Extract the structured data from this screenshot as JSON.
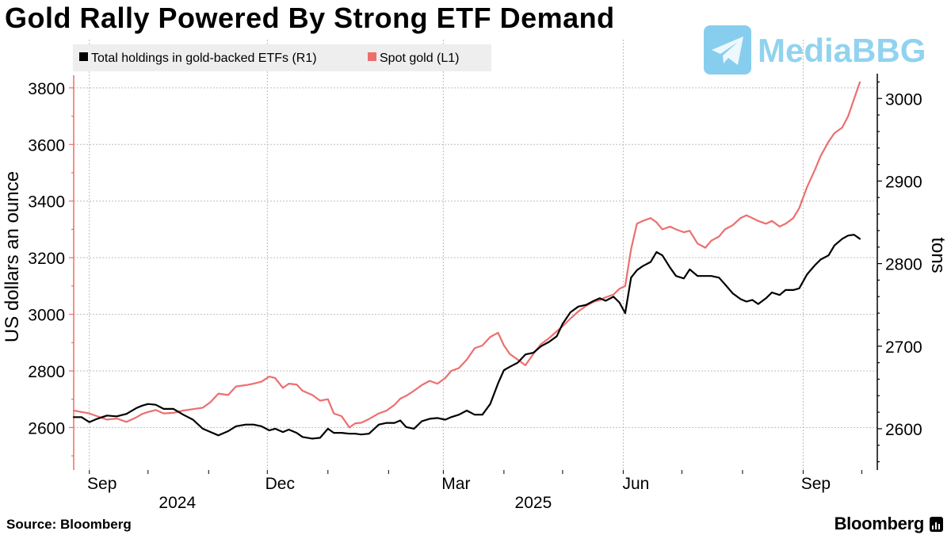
{
  "title": "Gold Rally Powered By Strong ETF Demand",
  "watermark": {
    "text": "MediaBBG",
    "icon": "telegram-paper-plane-icon",
    "color": "#37aee2"
  },
  "source": "Source:  Bloomberg",
  "brand": "Bloomberg",
  "colors": {
    "etf": "#000000",
    "spot": "#ec6f6f",
    "grid": "#bdbdbd",
    "legend_bg": "#eeeeee"
  },
  "chart_data": {
    "type": "line",
    "x_ticks": [
      {
        "label": "Sep",
        "date": "2024-09-01"
      },
      {
        "label": "Dec",
        "date": "2024-12-01"
      },
      {
        "label": "Mar",
        "date": "2025-03-01"
      },
      {
        "label": "Jun",
        "date": "2025-06-01"
      },
      {
        "label": "Sep",
        "date": "2025-09-01"
      }
    ],
    "year_labels": [
      {
        "label": "2024",
        "date": "2024-10-16"
      },
      {
        "label": "2025",
        "date": "2025-04-16"
      }
    ],
    "x_range": [
      "2024-08-24",
      "2025-09-30"
    ],
    "left_axis": {
      "label": "US dollars an ounce",
      "range": [
        2450,
        3850
      ],
      "ticks": [
        2600,
        2800,
        3000,
        3200,
        3400,
        3600,
        3800
      ]
    },
    "right_axis": {
      "label": "tons",
      "range": [
        2550,
        3030
      ],
      "ticks": [
        2600,
        2700,
        2800,
        2900,
        3000
      ]
    },
    "legend": {
      "placement": "top-left",
      "items": [
        "Total holdings in gold-backed ETFs (R1)",
        "Spot gold (L1)"
      ]
    },
    "grid": true,
    "series": [
      {
        "name": "Total holdings in gold-backed ETFs (R1)",
        "axis": "right",
        "points": [
          [
            "2024-08-24",
            2614
          ],
          [
            "2024-08-28",
            2614
          ],
          [
            "2024-09-01",
            2608
          ],
          [
            "2024-09-05",
            2612
          ],
          [
            "2024-09-10",
            2616
          ],
          [
            "2024-09-15",
            2615
          ],
          [
            "2024-09-20",
            2618
          ],
          [
            "2024-09-25",
            2625
          ],
          [
            "2024-09-28",
            2628
          ],
          [
            "2024-10-01",
            2630
          ],
          [
            "2024-10-05",
            2629
          ],
          [
            "2024-10-09",
            2624
          ],
          [
            "2024-10-14",
            2624
          ],
          [
            "2024-10-19",
            2617
          ],
          [
            "2024-10-24",
            2611
          ],
          [
            "2024-10-29",
            2600
          ],
          [
            "2024-11-02",
            2596
          ],
          [
            "2024-11-06",
            2592
          ],
          [
            "2024-11-11",
            2597
          ],
          [
            "2024-11-15",
            2603
          ],
          [
            "2024-11-20",
            2605
          ],
          [
            "2024-11-24",
            2605
          ],
          [
            "2024-11-28",
            2603
          ],
          [
            "2024-12-02",
            2598
          ],
          [
            "2024-12-05",
            2600
          ],
          [
            "2024-12-09",
            2596
          ],
          [
            "2024-12-12",
            2599
          ],
          [
            "2024-12-16",
            2595
          ],
          [
            "2024-12-19",
            2590
          ],
          [
            "2024-12-24",
            2588
          ],
          [
            "2024-12-28",
            2589
          ],
          [
            "2025-01-01",
            2600
          ],
          [
            "2025-01-04",
            2595
          ],
          [
            "2025-01-08",
            2595
          ],
          [
            "2025-01-12",
            2594
          ],
          [
            "2025-01-15",
            2594
          ],
          [
            "2025-01-18",
            2593
          ],
          [
            "2025-01-22",
            2594
          ],
          [
            "2025-01-27",
            2605
          ],
          [
            "2025-01-31",
            2607
          ],
          [
            "2025-02-04",
            2607
          ],
          [
            "2025-02-07",
            2610
          ],
          [
            "2025-02-10",
            2602
          ],
          [
            "2025-02-14",
            2600
          ],
          [
            "2025-02-18",
            2609
          ],
          [
            "2025-02-22",
            2612
          ],
          [
            "2025-02-26",
            2613
          ],
          [
            "2025-03-02",
            2611
          ],
          [
            "2025-03-05",
            2614
          ],
          [
            "2025-03-09",
            2617
          ],
          [
            "2025-03-13",
            2622
          ],
          [
            "2025-03-17",
            2617
          ],
          [
            "2025-03-21",
            2617
          ],
          [
            "2025-03-25",
            2630
          ],
          [
            "2025-03-29",
            2655
          ],
          [
            "2025-04-01",
            2671
          ],
          [
            "2025-04-04",
            2675
          ],
          [
            "2025-04-08",
            2680
          ],
          [
            "2025-04-12",
            2690
          ],
          [
            "2025-04-16",
            2692
          ],
          [
            "2025-04-20",
            2700
          ],
          [
            "2025-04-24",
            2705
          ],
          [
            "2025-04-28",
            2712
          ],
          [
            "2025-05-01",
            2727
          ],
          [
            "2025-05-05",
            2741
          ],
          [
            "2025-05-09",
            2748
          ],
          [
            "2025-05-13",
            2750
          ],
          [
            "2025-05-17",
            2755
          ],
          [
            "2025-05-20",
            2758
          ],
          [
            "2025-05-23",
            2755
          ],
          [
            "2025-05-27",
            2760
          ],
          [
            "2025-05-30",
            2753
          ],
          [
            "2025-06-02",
            2740
          ],
          [
            "2025-06-05",
            2783
          ],
          [
            "2025-06-08",
            2792
          ],
          [
            "2025-06-11",
            2797
          ],
          [
            "2025-06-15",
            2802
          ],
          [
            "2025-06-18",
            2814
          ],
          [
            "2025-06-21",
            2810
          ],
          [
            "2025-06-25",
            2795
          ],
          [
            "2025-06-28",
            2785
          ],
          [
            "2025-07-02",
            2782
          ],
          [
            "2025-07-05",
            2793
          ],
          [
            "2025-07-09",
            2785
          ],
          [
            "2025-07-13",
            2785
          ],
          [
            "2025-07-16",
            2785
          ],
          [
            "2025-07-20",
            2783
          ],
          [
            "2025-07-23",
            2775
          ],
          [
            "2025-07-27",
            2764
          ],
          [
            "2025-07-31",
            2757
          ],
          [
            "2025-08-03",
            2754
          ],
          [
            "2025-08-06",
            2756
          ],
          [
            "2025-08-09",
            2751
          ],
          [
            "2025-08-13",
            2758
          ],
          [
            "2025-08-16",
            2765
          ],
          [
            "2025-08-20",
            2762
          ],
          [
            "2025-08-23",
            2768
          ],
          [
            "2025-08-27",
            2768
          ],
          [
            "2025-08-30",
            2770
          ],
          [
            "2025-09-03",
            2787
          ],
          [
            "2025-09-07",
            2798
          ],
          [
            "2025-09-10",
            2805
          ],
          [
            "2025-09-14",
            2810
          ],
          [
            "2025-09-17",
            2822
          ],
          [
            "2025-09-21",
            2830
          ],
          [
            "2025-09-24",
            2834
          ],
          [
            "2025-09-27",
            2835
          ],
          [
            "2025-09-30",
            2830
          ]
        ]
      },
      {
        "name": "Spot gold (L1)",
        "axis": "left",
        "points": [
          [
            "2024-08-24",
            2660
          ],
          [
            "2024-08-28",
            2655
          ],
          [
            "2024-09-01",
            2650
          ],
          [
            "2024-09-05",
            2640
          ],
          [
            "2024-09-10",
            2628
          ],
          [
            "2024-09-15",
            2632
          ],
          [
            "2024-09-20",
            2620
          ],
          [
            "2024-09-25",
            2636
          ],
          [
            "2024-09-28",
            2648
          ],
          [
            "2024-10-01",
            2655
          ],
          [
            "2024-10-05",
            2662
          ],
          [
            "2024-10-09",
            2650
          ],
          [
            "2024-10-14",
            2652
          ],
          [
            "2024-10-19",
            2660
          ],
          [
            "2024-10-24",
            2665
          ],
          [
            "2024-10-29",
            2670
          ],
          [
            "2024-11-02",
            2690
          ],
          [
            "2024-11-06",
            2720
          ],
          [
            "2024-11-11",
            2715
          ],
          [
            "2024-11-15",
            2745
          ],
          [
            "2024-11-20",
            2750
          ],
          [
            "2024-11-24",
            2755
          ],
          [
            "2024-11-28",
            2762
          ],
          [
            "2024-12-02",
            2780
          ],
          [
            "2024-12-05",
            2775
          ],
          [
            "2024-12-09",
            2740
          ],
          [
            "2024-12-12",
            2755
          ],
          [
            "2024-12-16",
            2752
          ],
          [
            "2024-12-19",
            2730
          ],
          [
            "2024-12-24",
            2715
          ],
          [
            "2024-12-28",
            2695
          ],
          [
            "2025-01-01",
            2700
          ],
          [
            "2025-01-04",
            2650
          ],
          [
            "2025-01-08",
            2640
          ],
          [
            "2025-01-12",
            2600
          ],
          [
            "2025-01-15",
            2615
          ],
          [
            "2025-01-18",
            2617
          ],
          [
            "2025-01-22",
            2630
          ],
          [
            "2025-01-27",
            2650
          ],
          [
            "2025-01-31",
            2660
          ],
          [
            "2025-02-04",
            2680
          ],
          [
            "2025-02-07",
            2702
          ],
          [
            "2025-02-10",
            2712
          ],
          [
            "2025-02-14",
            2730
          ],
          [
            "2025-02-18",
            2750
          ],
          [
            "2025-02-22",
            2765
          ],
          [
            "2025-02-26",
            2755
          ],
          [
            "2025-03-02",
            2775
          ],
          [
            "2025-03-05",
            2800
          ],
          [
            "2025-03-09",
            2810
          ],
          [
            "2025-03-13",
            2840
          ],
          [
            "2025-03-17",
            2880
          ],
          [
            "2025-03-21",
            2890
          ],
          [
            "2025-03-25",
            2920
          ],
          [
            "2025-03-29",
            2935
          ],
          [
            "2025-04-01",
            2890
          ],
          [
            "2025-04-04",
            2860
          ],
          [
            "2025-04-08",
            2840
          ],
          [
            "2025-04-12",
            2820
          ],
          [
            "2025-04-16",
            2860
          ],
          [
            "2025-04-20",
            2895
          ],
          [
            "2025-04-24",
            2915
          ],
          [
            "2025-04-28",
            2940
          ],
          [
            "2025-05-01",
            2958
          ],
          [
            "2025-05-05",
            2985
          ],
          [
            "2025-05-09",
            3010
          ],
          [
            "2025-05-13",
            3030
          ],
          [
            "2025-05-17",
            3045
          ],
          [
            "2025-05-20",
            3050
          ],
          [
            "2025-05-23",
            3060
          ],
          [
            "2025-05-27",
            3070
          ],
          [
            "2025-05-30",
            3090
          ],
          [
            "2025-06-02",
            3100
          ],
          [
            "2025-06-05",
            3230
          ],
          [
            "2025-06-08",
            3320
          ],
          [
            "2025-06-11",
            3330
          ],
          [
            "2025-06-15",
            3340
          ],
          [
            "2025-06-18",
            3325
          ],
          [
            "2025-06-21",
            3300
          ],
          [
            "2025-06-25",
            3310
          ],
          [
            "2025-06-28",
            3300
          ],
          [
            "2025-07-02",
            3290
          ],
          [
            "2025-07-05",
            3295
          ],
          [
            "2025-07-09",
            3250
          ],
          [
            "2025-07-13",
            3235
          ],
          [
            "2025-07-16",
            3260
          ],
          [
            "2025-07-20",
            3275
          ],
          [
            "2025-07-23",
            3300
          ],
          [
            "2025-07-27",
            3315
          ],
          [
            "2025-07-31",
            3340
          ],
          [
            "2025-08-03",
            3350
          ],
          [
            "2025-08-06",
            3340
          ],
          [
            "2025-08-09",
            3330
          ],
          [
            "2025-08-13",
            3320
          ],
          [
            "2025-08-16",
            3330
          ],
          [
            "2025-08-20",
            3310
          ],
          [
            "2025-08-23",
            3320
          ],
          [
            "2025-08-27",
            3340
          ],
          [
            "2025-08-30",
            3375
          ],
          [
            "2025-09-03",
            3450
          ],
          [
            "2025-09-07",
            3510
          ],
          [
            "2025-09-10",
            3560
          ],
          [
            "2025-09-14",
            3610
          ],
          [
            "2025-09-17",
            3640
          ],
          [
            "2025-09-21",
            3660
          ],
          [
            "2025-09-24",
            3700
          ],
          [
            "2025-09-27",
            3760
          ],
          [
            "2025-09-30",
            3820
          ]
        ]
      }
    ]
  }
}
